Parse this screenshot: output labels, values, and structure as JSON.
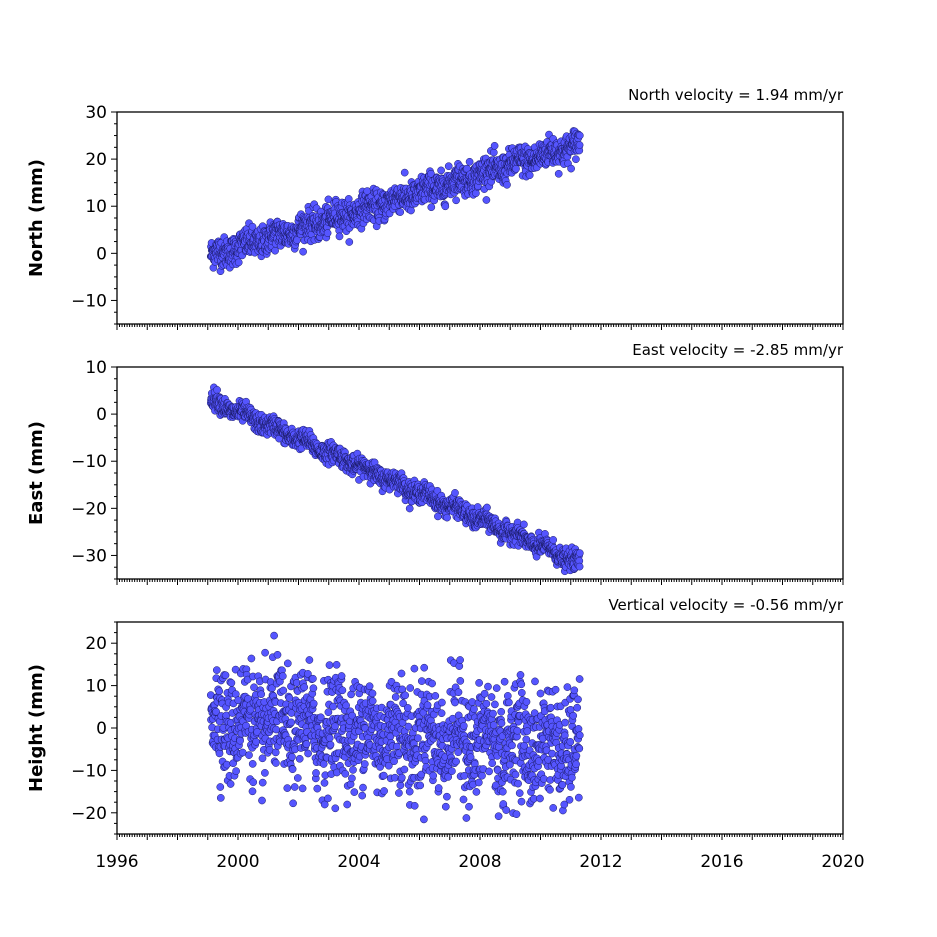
{
  "chart_data": [
    {
      "type": "scatter",
      "name": "north",
      "ylabel": "North (mm)",
      "annotation": "North velocity = 1.94 mm/yr",
      "velocity": 1.94,
      "intercept_at_start": -0.5,
      "noise_amplitude": 1.6,
      "xlim": [
        1996,
        2020
      ],
      "ylim": [
        -15,
        30
      ],
      "yticks": [
        -10,
        0,
        10,
        20,
        30
      ],
      "ytick_labels": [
        "−10",
        "0",
        "10",
        "20",
        "30"
      ],
      "data_range": [
        1999.1,
        2011.3
      ],
      "point_color": "#5555ff"
    },
    {
      "type": "scatter",
      "name": "east",
      "ylabel": "East (mm)",
      "annotation": "East velocity = -2.85 mm/yr",
      "velocity": -2.85,
      "intercept_at_start": 3.0,
      "noise_amplitude": 1.0,
      "xlim": [
        1996,
        2020
      ],
      "ylim": [
        -35,
        10
      ],
      "yticks": [
        -30,
        -20,
        -10,
        0,
        10
      ],
      "ytick_labels": [
        "−30",
        "−20",
        "−10",
        "0",
        "10"
      ],
      "data_range": [
        1999.1,
        2011.3
      ],
      "point_color": "#5555ff"
    },
    {
      "type": "scatter",
      "name": "height",
      "ylabel": "Height (mm)",
      "annotation": "Vertical velocity = -0.56 mm/yr",
      "velocity": -0.56,
      "intercept_at_start": 2.0,
      "noise_amplitude": 6.5,
      "xlim": [
        1996,
        2020
      ],
      "ylim": [
        -25,
        25
      ],
      "yticks": [
        -20,
        -10,
        0,
        10,
        20
      ],
      "ytick_labels": [
        "−20",
        "−10",
        "0",
        "10",
        "20"
      ],
      "data_range": [
        1999.1,
        2011.3
      ],
      "point_color": "#5555ff"
    }
  ],
  "xaxis": {
    "ticks": [
      1996,
      2000,
      2004,
      2008,
      2012,
      2016,
      2020
    ],
    "tick_labels": [
      "1996",
      "2000",
      "2004",
      "2008",
      "2012",
      "2016",
      "2020"
    ]
  }
}
